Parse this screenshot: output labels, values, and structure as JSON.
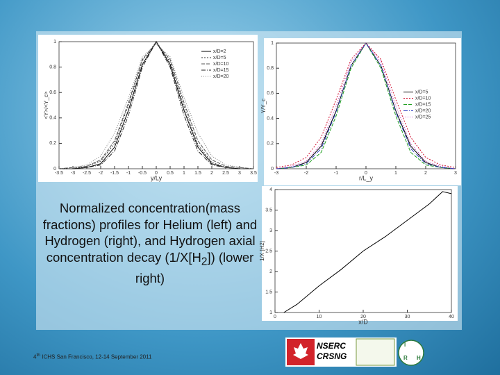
{
  "chart_data": [
    {
      "type": "line",
      "xlabel": "y/Ly",
      "ylabel": "<Y>/<Y_c>",
      "legend": "upper right",
      "x": [
        -3.5,
        -3,
        -2.5,
        -2,
        -1.5,
        -1,
        -0.5,
        0,
        0.5,
        1,
        1.5,
        2,
        2.5,
        3,
        3.5
      ],
      "series": [
        {
          "name": "x/D=2",
          "color": "#000000",
          "values": [
            0,
            0,
            0.01,
            0.04,
            0.17,
            0.46,
            0.82,
            1,
            0.82,
            0.46,
            0.17,
            0.04,
            0.01,
            0,
            0
          ]
        },
        {
          "name": "x/D=5",
          "color": "#333333",
          "values": [
            0,
            0,
            0.02,
            0.06,
            0.2,
            0.5,
            0.85,
            1,
            0.84,
            0.49,
            0.19,
            0.05,
            0.01,
            0,
            0
          ]
        },
        {
          "name": "x/D=10",
          "color": "#555555",
          "values": [
            0,
            0.01,
            0.02,
            0.07,
            0.22,
            0.52,
            0.86,
            0.99,
            0.86,
            0.52,
            0.22,
            0.07,
            0.02,
            0.01,
            0
          ]
        },
        {
          "name": "x/D=15",
          "color": "#222222",
          "values": [
            0,
            0,
            0.01,
            0.03,
            0.14,
            0.42,
            0.8,
            1,
            0.8,
            0.42,
            0.14,
            0.03,
            0.01,
            0,
            0
          ]
        },
        {
          "name": "x/D=20",
          "color": "#777777",
          "values": [
            0,
            0.01,
            0.03,
            0.1,
            0.28,
            0.56,
            0.88,
            0.98,
            0.88,
            0.56,
            0.28,
            0.1,
            0.03,
            0.01,
            0
          ]
        }
      ],
      "xlim": [
        -3.5,
        3.5
      ],
      "xticks": [
        -3.5,
        -3,
        -2.5,
        -2,
        -1.5,
        -1,
        -0.5,
        0,
        0.5,
        1,
        1.5,
        2,
        2.5,
        3,
        3.5
      ],
      "ylim": [
        0,
        1
      ],
      "yticks": [
        0,
        0.2,
        0.4,
        0.6,
        0.8,
        1
      ]
    },
    {
      "type": "line",
      "xlabel": "r/L_y",
      "ylabel": "Y/Y_c",
      "legend": "center right",
      "x": [
        -3,
        -2.5,
        -2,
        -1.5,
        -1,
        -0.5,
        0,
        0.5,
        1,
        1.5,
        2,
        2.5,
        3
      ],
      "series": [
        {
          "name": "x/D=5",
          "color": "#000000",
          "values": [
            0,
            0.01,
            0.05,
            0.18,
            0.46,
            0.82,
            1,
            0.82,
            0.46,
            0.18,
            0.05,
            0.01,
            0
          ]
        },
        {
          "name": "x/D=10",
          "color": "#d01030",
          "values": [
            0.01,
            0.03,
            0.09,
            0.25,
            0.55,
            0.87,
            1,
            0.87,
            0.55,
            0.25,
            0.09,
            0.03,
            0.01
          ]
        },
        {
          "name": "x/D=15",
          "color": "#20a020",
          "values": [
            0,
            0.01,
            0.03,
            0.13,
            0.42,
            0.8,
            1,
            0.8,
            0.42,
            0.13,
            0.03,
            0.01,
            0
          ]
        },
        {
          "name": "x/D=20",
          "color": "#3040c0",
          "values": [
            0,
            0.01,
            0.04,
            0.16,
            0.45,
            0.82,
            1,
            0.82,
            0.45,
            0.16,
            0.04,
            0.01,
            0
          ]
        },
        {
          "name": "x/D=25",
          "color": "#c030c0",
          "values": [
            0,
            0.02,
            0.06,
            0.2,
            0.5,
            0.85,
            1,
            0.85,
            0.5,
            0.2,
            0.06,
            0.02,
            0
          ]
        }
      ],
      "xlim": [
        -3,
        3
      ],
      "xticks": [
        -3,
        -2,
        -1,
        0,
        1,
        2,
        3
      ],
      "ylim": [
        0,
        1
      ],
      "yticks": [
        0,
        0.2,
        0.4,
        0.6,
        0.8,
        1
      ]
    },
    {
      "type": "line",
      "xlabel": "x/D",
      "ylabel": "1/X [H2]",
      "x": [
        2,
        5,
        10,
        15,
        20,
        25,
        30,
        35,
        38,
        40
      ],
      "series": [
        {
          "name": "1/X[H2]",
          "color": "#000000",
          "values": [
            1,
            1.2,
            1.65,
            2.05,
            2.5,
            2.85,
            3.25,
            3.65,
            3.95,
            3.9
          ]
        }
      ],
      "xlim": [
        0,
        40
      ],
      "xticks": [
        0,
        10,
        20,
        30,
        40
      ],
      "ylim": [
        1,
        4
      ],
      "yticks": [
        1,
        1.5,
        2,
        2.5,
        3,
        3.5,
        4
      ]
    }
  ],
  "caption": {
    "before": "Normalized concentration(mass fractions) profiles for Helium (left) and Hydrogen (right), and Hydrogen axial concentration decay (1/X[H",
    "sub": "2",
    "after": "]) (lower right)"
  },
  "footer": {
    "number": "4",
    "ordinal": "th",
    "text": "ICHS San Francisco, 12-14 September 2011"
  },
  "logos": {
    "nserc": "NSERC",
    "crsng": "CRSNG",
    "irh": [
      "I",
      "R",
      "H"
    ]
  }
}
